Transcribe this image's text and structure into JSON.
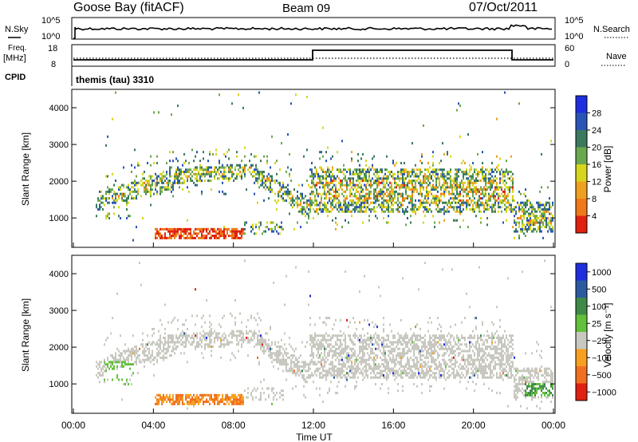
{
  "header": {
    "station": "Goose Bay (fitACF)",
    "beam": "Beam 09",
    "date": "07/Oct/2011"
  },
  "noise_panel": {
    "left_label": "N.Sky",
    "right_label": "N.Search",
    "ticks_left": [
      "10^5",
      "10^0"
    ],
    "ticks_right": [
      "10^5",
      "10^0"
    ]
  },
  "freq_panel": {
    "left_label_1": "Freq.",
    "left_label_2": "[MHz]",
    "right_label": "Nave",
    "ticks_left": [
      "18",
      "8"
    ],
    "ticks_right": [
      "60",
      "0"
    ],
    "cpid_label": "CPID",
    "cpid_value": "themis (tau) 3310"
  },
  "colors": {
    "power": [
      "#1f2fe0",
      "#2a54b8",
      "#3a7a5e",
      "#6aa84f",
      "#d7d61c",
      "#f0a020",
      "#f07818",
      "#e02010"
    ],
    "velocity": [
      "#1f2fe0",
      "#2a5aa0",
      "#3e8a48",
      "#62c03a",
      "#c8c8c0",
      "#f7a020",
      "#f07020",
      "#e02010"
    ]
  },
  "chart_data": [
    {
      "type": "heatmap",
      "name": "power",
      "ylabel": "Slant Range [km]",
      "yticks": [
        1000,
        2000,
        3000,
        4000
      ],
      "ylim": [
        200,
        4500
      ],
      "colorbar_label": "Power [dB]",
      "colorbar_ticks": [
        "4",
        "8",
        "12",
        "16",
        "20",
        "24",
        "28"
      ]
    },
    {
      "type": "heatmap",
      "name": "velocity",
      "ylabel": "Slant Range [km]",
      "yticks": [
        1000,
        2000,
        3000,
        4000
      ],
      "ylim": [
        200,
        4500
      ],
      "colorbar_label": "Velocity [m s⁻¹]",
      "colorbar_ticks": [
        "1000",
        "500",
        "100",
        "25",
        "−25",
        "−100",
        "−500",
        "−1000"
      ]
    }
  ],
  "xaxis": {
    "ticks": [
      "00:00",
      "04:00",
      "08:00",
      "12:00",
      "16:00",
      "20:00",
      "00:00"
    ],
    "label": "Time UT"
  }
}
